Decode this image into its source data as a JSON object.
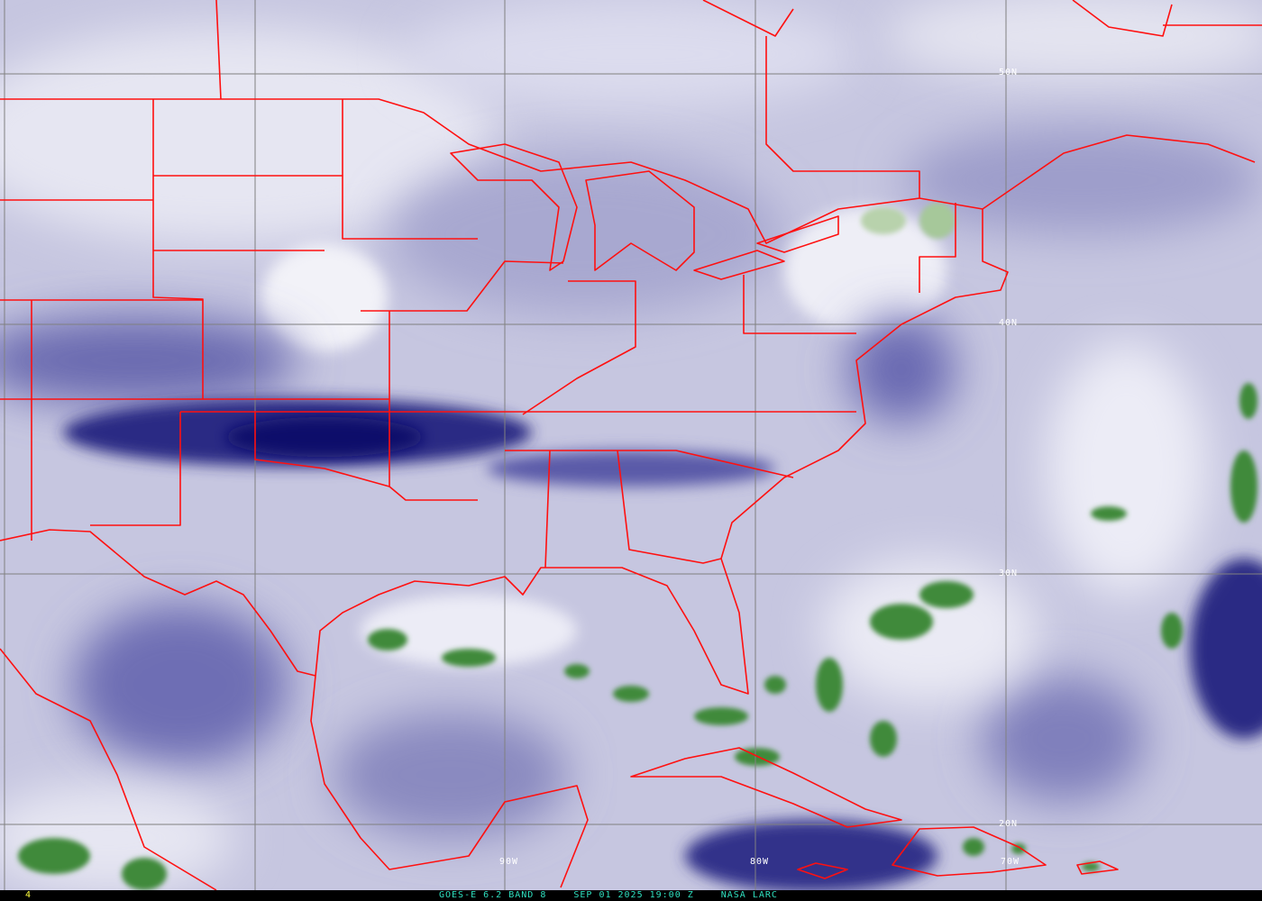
{
  "image": {
    "product": "GOES-E 6.2 BAND 8",
    "datetime": "SEP 01 2025 19:00 Z",
    "source": "NASA LARC",
    "frame_number": "4"
  },
  "grid_labels": {
    "lat": [
      "50N",
      "40N",
      "30N",
      "20N"
    ],
    "lon": [
      "90W",
      "80W",
      "70W"
    ]
  },
  "colors": {
    "boundaries": "#ff1010",
    "gridlines": "#808080",
    "dry_air": "#14146e",
    "moist_air": "#e8e8f4",
    "deep_convection": "#2e7d2e",
    "caption_text": "#30e0c0",
    "frame_text": "#ffff40"
  }
}
